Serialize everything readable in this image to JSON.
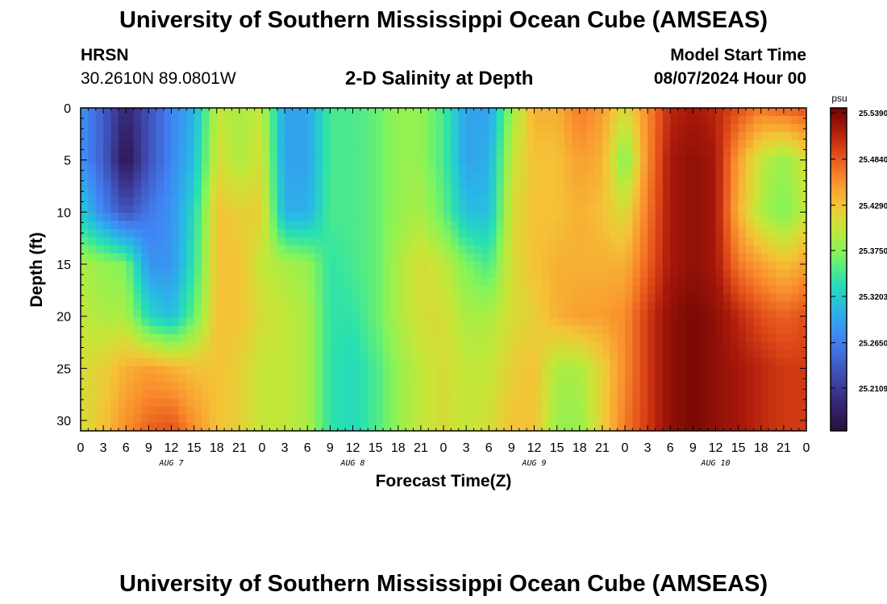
{
  "header": {
    "title": "University of Southern Mississippi Ocean Cube (AMSEAS)",
    "station_name": "HRSN",
    "station_coords": "30.2610N  89.0801W",
    "plot_title": "2-D Salinity at Depth",
    "model_start_label": "Model Start Time",
    "model_start_value": "08/07/2024 Hour 00"
  },
  "footer": {
    "title": "University of Southern Mississippi Ocean Cube (AMSEAS)"
  },
  "chart_data": {
    "type": "heatmap",
    "xlabel": "Forecast Time(Z)",
    "ylabel": "Depth (ft)",
    "x_ticks": [
      "0",
      "3",
      "6",
      "9",
      "12",
      "15",
      "18",
      "21",
      "0",
      "3",
      "6",
      "9",
      "12",
      "15",
      "18",
      "21",
      "0",
      "3",
      "6",
      "9",
      "12",
      "15",
      "18",
      "21",
      "0",
      "3",
      "6",
      "9",
      "12",
      "15",
      "18",
      "21",
      "0"
    ],
    "x_hours_range": [
      0,
      96
    ],
    "day_labels": [
      {
        "label": "AUG 7",
        "hour": 12
      },
      {
        "label": "AUG 8",
        "hour": 36
      },
      {
        "label": "AUG 9",
        "hour": 60
      },
      {
        "label": "AUG 10",
        "hour": 84
      }
    ],
    "y_ticks": [
      "0",
      "5",
      "10",
      "15",
      "20",
      "25",
      "30"
    ],
    "ylim": [
      31,
      0
    ],
    "colorbar": {
      "unit": "psu",
      "labels": [
        "25.5390",
        "25.4840",
        "25.4290",
        "25.3750",
        "25.3203",
        "25.2650",
        "25.2109"
      ],
      "vmin": 25.16,
      "vmax": 25.545
    },
    "depths_ft": [
      0,
      5,
      10,
      15,
      20,
      25,
      31
    ],
    "hours": [
      0,
      3,
      6,
      9,
      12,
      15,
      18,
      21,
      24,
      27,
      30,
      33,
      36,
      39,
      42,
      45,
      48,
      51,
      54,
      57,
      60,
      63,
      66,
      69,
      72,
      75,
      78,
      81,
      84,
      87,
      90,
      93,
      96
    ],
    "salinity_psu": [
      [
        25.28,
        25.24,
        25.19,
        25.23,
        25.27,
        25.3,
        25.4,
        25.39,
        25.4,
        25.29,
        25.29,
        25.35,
        25.35,
        25.36,
        25.38,
        25.38,
        25.35,
        25.29,
        25.29,
        25.38,
        25.44,
        25.44,
        25.47,
        25.45,
        25.41,
        25.46,
        25.51,
        25.52,
        25.51,
        25.49,
        25.47,
        25.48,
        25.49
      ],
      [
        25.28,
        25.24,
        25.17,
        25.23,
        25.27,
        25.31,
        25.41,
        25.39,
        25.41,
        25.29,
        25.29,
        25.35,
        25.35,
        25.36,
        25.38,
        25.38,
        25.35,
        25.29,
        25.3,
        25.4,
        25.43,
        25.43,
        25.45,
        25.44,
        25.37,
        25.46,
        25.52,
        25.53,
        25.52,
        25.45,
        25.4,
        25.38,
        25.41
      ],
      [
        25.32,
        25.27,
        25.23,
        25.26,
        25.28,
        25.33,
        25.43,
        25.42,
        25.42,
        25.3,
        25.3,
        25.35,
        25.35,
        25.36,
        25.38,
        25.39,
        25.36,
        25.31,
        25.31,
        25.41,
        25.43,
        25.43,
        25.44,
        25.43,
        25.41,
        25.47,
        25.52,
        25.53,
        25.52,
        25.44,
        25.39,
        25.37,
        25.4
      ],
      [
        25.39,
        25.38,
        25.37,
        25.28,
        25.28,
        25.34,
        25.43,
        25.43,
        25.4,
        25.39,
        25.38,
        25.34,
        25.35,
        25.36,
        25.39,
        25.41,
        25.4,
        25.37,
        25.35,
        25.41,
        25.43,
        25.44,
        25.44,
        25.44,
        25.44,
        25.48,
        25.52,
        25.53,
        25.52,
        25.47,
        25.45,
        25.43,
        25.45
      ],
      [
        25.4,
        25.39,
        25.39,
        25.33,
        25.31,
        25.36,
        25.43,
        25.43,
        25.41,
        25.4,
        25.39,
        25.34,
        25.34,
        25.36,
        25.39,
        25.41,
        25.41,
        25.39,
        25.39,
        25.41,
        25.42,
        25.44,
        25.45,
        25.45,
        25.46,
        25.5,
        25.53,
        25.54,
        25.53,
        25.51,
        25.49,
        25.48,
        25.49
      ],
      [
        25.41,
        25.42,
        25.44,
        25.45,
        25.44,
        25.43,
        25.43,
        25.42,
        25.4,
        25.4,
        25.39,
        25.34,
        25.33,
        25.35,
        25.38,
        25.4,
        25.41,
        25.4,
        25.4,
        25.42,
        25.43,
        25.39,
        25.39,
        25.42,
        25.46,
        25.5,
        25.53,
        25.54,
        25.53,
        25.52,
        25.51,
        25.5,
        25.5
      ],
      [
        25.41,
        25.43,
        25.46,
        25.48,
        25.49,
        25.46,
        25.43,
        25.42,
        25.4,
        25.4,
        25.39,
        25.34,
        25.33,
        25.35,
        25.38,
        25.4,
        25.41,
        25.4,
        25.41,
        25.43,
        25.43,
        25.38,
        25.38,
        25.42,
        25.47,
        25.5,
        25.53,
        25.54,
        25.53,
        25.52,
        25.51,
        25.5,
        25.5
      ]
    ]
  }
}
